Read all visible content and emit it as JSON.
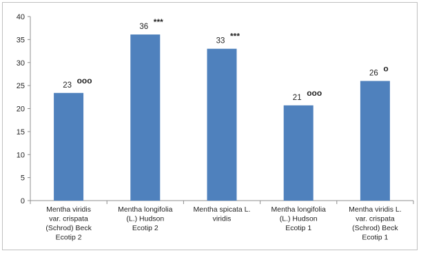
{
  "chart_data": {
    "type": "bar",
    "title": "",
    "xlabel": "",
    "ylabel": "",
    "ylim": [
      0,
      40
    ],
    "yticks": [
      0,
      5,
      10,
      15,
      20,
      25,
      30,
      35,
      40
    ],
    "grid": false,
    "legend": "none",
    "bar_color": "#4f81bd",
    "categories": [
      [
        "Mentha viridis",
        "var. crispata",
        "(Schrod) Beck",
        "Ecotip 2"
      ],
      [
        "Mentha longifolia",
        "(L.) Hudson",
        "Ecotip 2"
      ],
      [
        "Mentha spicata L.",
        "viridis"
      ],
      [
        "Mentha longifolia",
        "(L.) Hudson",
        "Ecotip 1"
      ],
      [
        "Mentha viridis L.",
        "var. crispata",
        "(Schrod) Beck",
        "Ecotip 1"
      ]
    ],
    "values": [
      23.4,
      36.1,
      33.0,
      20.7,
      26.0
    ],
    "data_labels": [
      "23",
      "36",
      "33",
      "21",
      "26"
    ],
    "significance_marks": [
      "ooo",
      "***",
      "***",
      "ooo",
      "o"
    ]
  }
}
